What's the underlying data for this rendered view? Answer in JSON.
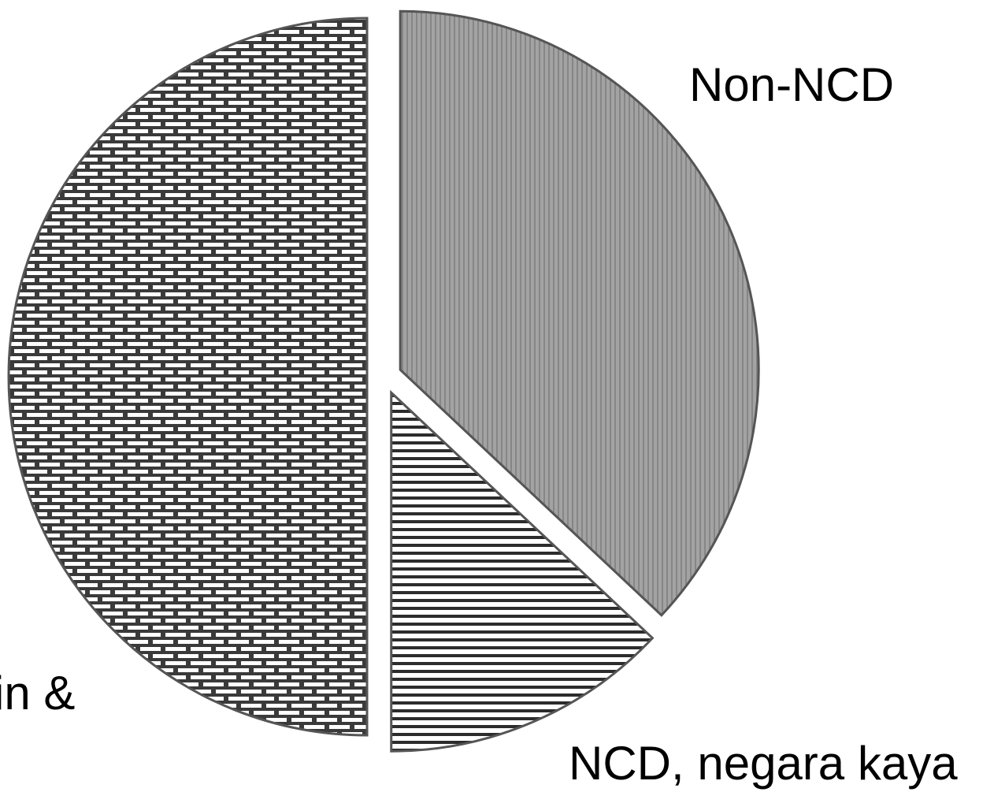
{
  "chart_data": {
    "type": "pie",
    "categories": [
      "Non-NCD",
      "NCD, negara kaya",
      "in &"
    ],
    "values": [
      37,
      13,
      50
    ],
    "start_category": "Non-NCD",
    "slice_labels": [
      "Non-NCD",
      "NCD, negara kaya",
      "in &"
    ],
    "slice_fills": [
      "#9a9a9a",
      "#ffffff",
      "#ffffff"
    ],
    "slice_patterns": [
      "vertical-lines",
      "horizontal-lines",
      "brick"
    ],
    "exploded": [
      true,
      true,
      true
    ],
    "title": "",
    "legend": "none"
  }
}
